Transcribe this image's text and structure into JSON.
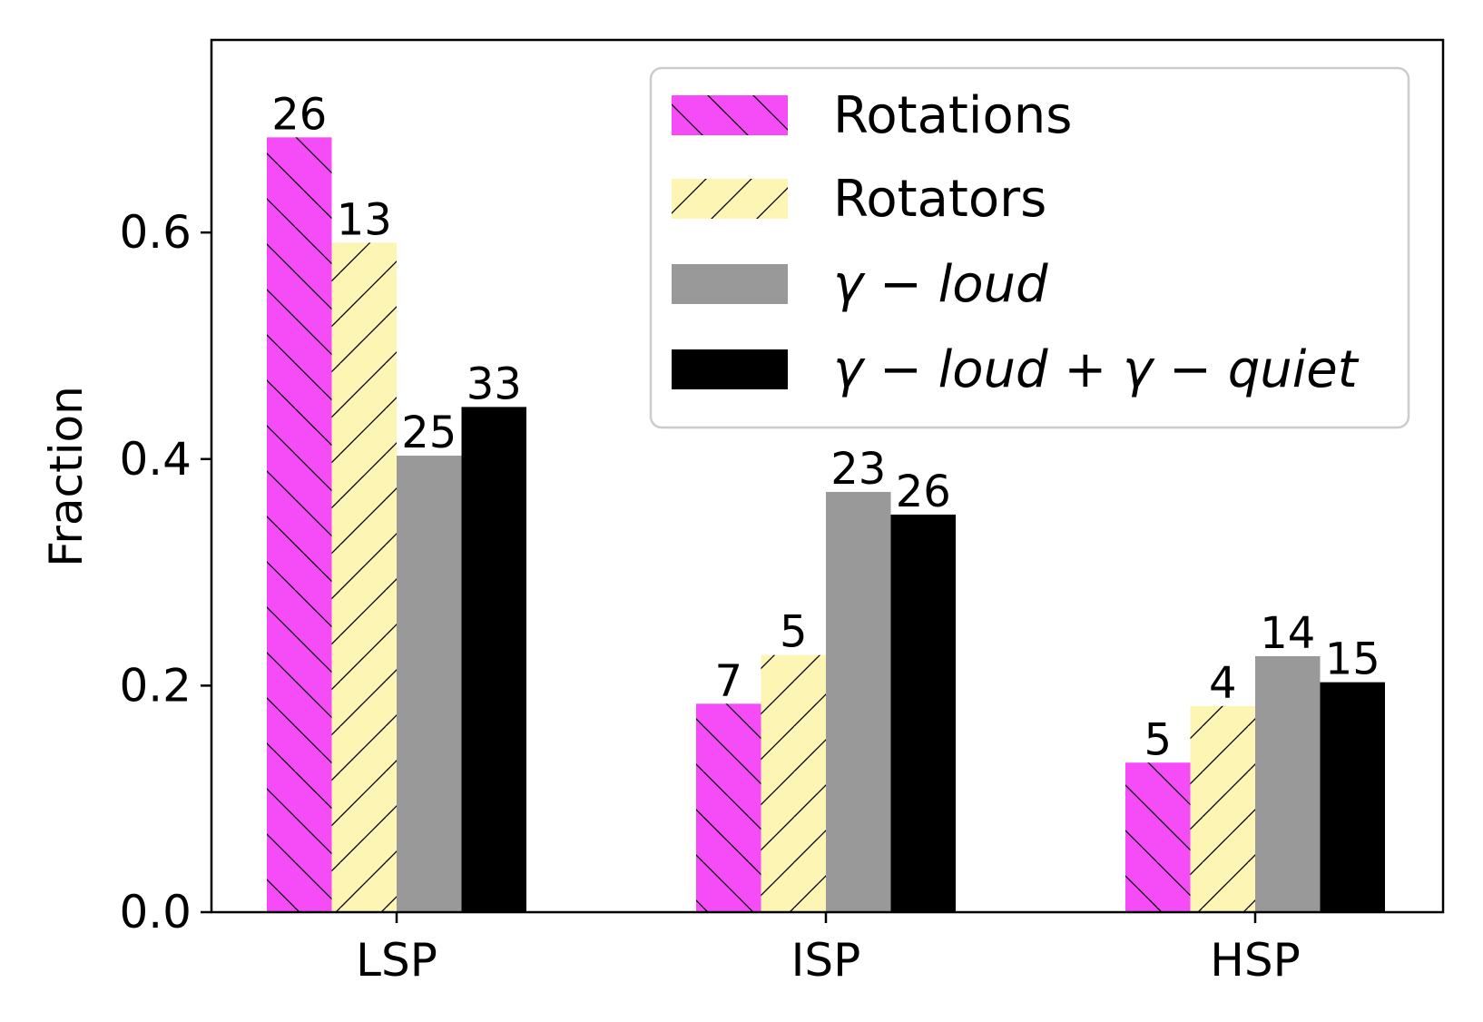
{
  "chart_data": {
    "type": "bar",
    "categories": [
      "LSP",
      "ISP",
      "HSP"
    ],
    "ylabel": "Fraction",
    "xlabel": "",
    "ylim": [
      0,
      0.77
    ],
    "yticks": [
      "0.0",
      "0.2",
      "0.4",
      "0.6"
    ],
    "grid": false,
    "legend_position": "top-right",
    "series": [
      {
        "name": "Rotations",
        "color": "#f54cf7",
        "hatch": "backslash",
        "values": [
          0.684,
          0.184,
          0.132
        ],
        "labels": [
          "26",
          "7",
          "5"
        ]
      },
      {
        "name": "Rotators",
        "color": "#fdf5b3",
        "hatch": "slash",
        "values": [
          0.591,
          0.227,
          0.182
        ],
        "labels": [
          "13",
          "5",
          "4"
        ]
      },
      {
        "name": "γ − loud",
        "color": "#999999",
        "hatch": "none",
        "values": [
          0.403,
          0.371,
          0.226
        ],
        "labels": [
          "25",
          "23",
          "14"
        ]
      },
      {
        "name": "γ − loud + γ − quiet",
        "color": "#000000",
        "hatch": "none",
        "values": [
          0.446,
          0.351,
          0.203
        ],
        "labels": [
          "33",
          "26",
          "15"
        ]
      }
    ]
  }
}
